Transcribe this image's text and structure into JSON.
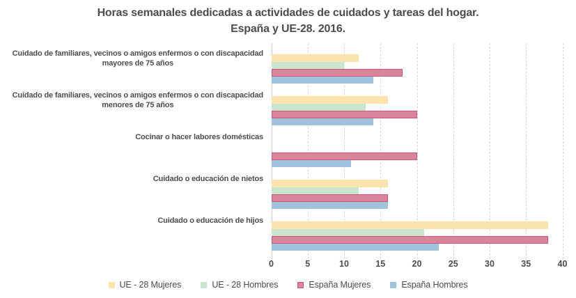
{
  "chart_data": {
    "type": "bar",
    "orientation": "horizontal",
    "title": "Horas semanales dedicadas a actividades de cuidados y tareas del hogar.",
    "subtitle": "España y UE-28. 2016.",
    "categories": [
      "Cuidado de familiares, vecinos o amigos enfermos o con discapacidad\nmayores de 75 años",
      "Cuidado de familiares, vecinos o amigos enfermos o con discapacidad\nmenores de 75 años",
      "Cocinar o hacer labores domésticas",
      "Cuidado o educación de nietos",
      "Cuidado o educación de hijos"
    ],
    "series": [
      {
        "name": "UE - 28 Mujeres",
        "color": "#FBE3AD",
        "border_color": null,
        "values": [
          12,
          16,
          null,
          16,
          38
        ]
      },
      {
        "name": "UE - 28 Hombres",
        "color": "#C9E5CE",
        "border_color": null,
        "values": [
          10,
          13,
          null,
          12,
          21
        ]
      },
      {
        "name": "España Mujeres",
        "color": "#D8849B",
        "border_color": "#C75677",
        "values": [
          18,
          20,
          20,
          16,
          38
        ]
      },
      {
        "name": "España Hombres",
        "color": "#A1C2DD",
        "border_color": null,
        "values": [
          14,
          14,
          11,
          16,
          23
        ]
      }
    ],
    "xlim": [
      0,
      40
    ],
    "xticks": [
      0,
      5,
      10,
      15,
      20,
      25,
      30,
      35,
      40
    ],
    "grid": "vertical-dashed",
    "legend_position": "bottom",
    "axis_color": "#cccccc",
    "gridline_color": "#d8d8d8",
    "text_color": "#4c4c4c"
  }
}
